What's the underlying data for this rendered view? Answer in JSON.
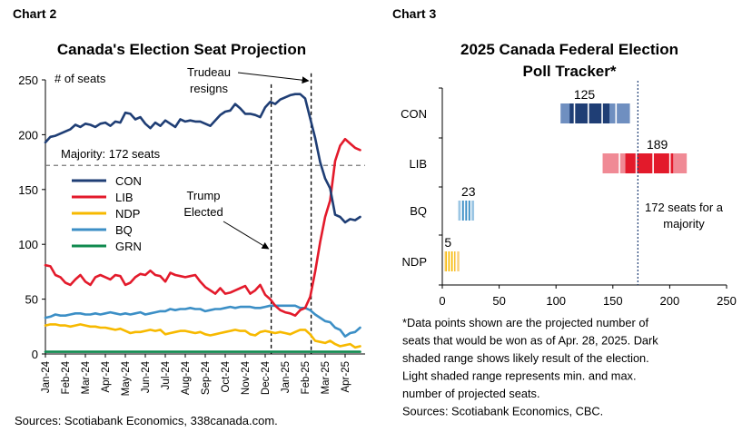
{
  "colors": {
    "con": "#1f3e75",
    "lib": "#e31a2b",
    "ndp": "#f7b900",
    "bq": "#3c8fc6",
    "grn": "#0f8a4f",
    "con_light": "#6f8fc0",
    "lib_light": "#f08a95",
    "bq_light": "#9cc6e4",
    "ndp_light": "#f8cf7a"
  },
  "chart_data": [
    {
      "id": "chart2",
      "type": "line",
      "label": "Chart 2",
      "title": "Canada's Election Seat Projection",
      "ylabel": "# of seats",
      "ylim": [
        0,
        250
      ],
      "yticks": [
        0,
        50,
        100,
        150,
        200,
        250
      ],
      "xlim": [
        0,
        16
      ],
      "x_tick_labels": [
        "Jan-24",
        "Feb-24",
        "Mar-24",
        "Apr-24",
        "May-24",
        "Jun-24",
        "Jul-24",
        "Aug-24",
        "Sep-24",
        "Oct-24",
        "Nov-24",
        "Dec-24",
        "Jan-25",
        "Feb-25",
        "Mar-25",
        "Apr-25"
      ],
      "majority": {
        "value": 172,
        "label": "Majority: 172 seats"
      },
      "events": [
        {
          "x": 11.3,
          "label_lines": [
            "Trump",
            "Elected"
          ]
        },
        {
          "x": 13.3,
          "label_lines": [
            "Trudeau",
            "resigns"
          ]
        }
      ],
      "series": [
        {
          "name": "CON",
          "color_key": "con",
          "x": [
            0,
            0.25,
            0.5,
            0.75,
            1,
            1.25,
            1.5,
            1.75,
            2,
            2.25,
            2.5,
            2.75,
            3,
            3.25,
            3.5,
            3.75,
            4,
            4.25,
            4.5,
            4.75,
            5,
            5.25,
            5.5,
            5.75,
            6,
            6.25,
            6.5,
            6.75,
            7,
            7.25,
            7.5,
            7.75,
            8,
            8.25,
            8.5,
            8.75,
            9,
            9.25,
            9.5,
            9.75,
            10,
            10.25,
            10.5,
            10.75,
            11,
            11.25,
            11.5,
            11.75,
            12,
            12.25,
            12.5,
            12.75,
            13,
            13.25,
            13.5,
            13.75,
            14,
            14.25,
            14.5,
            14.75,
            15,
            15.25,
            15.5,
            15.75
          ],
          "y": [
            193,
            198,
            199,
            201,
            203,
            205,
            209,
            207,
            210,
            209,
            207,
            210,
            211,
            208,
            212,
            211,
            220,
            219,
            214,
            216,
            210,
            206,
            211,
            208,
            213,
            210,
            207,
            214,
            212,
            213,
            212,
            212,
            210,
            208,
            213,
            218,
            221,
            222,
            228,
            224,
            219,
            219,
            218,
            216,
            225,
            230,
            228,
            232,
            234,
            236,
            237,
            237,
            233,
            215,
            197,
            175,
            160,
            151,
            127,
            125,
            120,
            123,
            122,
            125
          ]
        },
        {
          "name": "LIB",
          "color_key": "lib",
          "x": [
            0,
            0.25,
            0.5,
            0.75,
            1,
            1.25,
            1.5,
            1.75,
            2,
            2.25,
            2.5,
            2.75,
            3,
            3.25,
            3.5,
            3.75,
            4,
            4.25,
            4.5,
            4.75,
            5,
            5.25,
            5.5,
            5.75,
            6,
            6.25,
            6.5,
            6.75,
            7,
            7.25,
            7.5,
            7.75,
            8,
            8.25,
            8.5,
            8.75,
            9,
            9.25,
            9.5,
            9.75,
            10,
            10.25,
            10.5,
            10.75,
            11,
            11.25,
            11.5,
            11.75,
            12,
            12.25,
            12.5,
            12.75,
            13,
            13.25,
            13.5,
            13.75,
            14,
            14.25,
            14.5,
            14.75,
            15,
            15.25,
            15.5,
            15.75
          ],
          "y": [
            81,
            80,
            72,
            70,
            65,
            63,
            68,
            72,
            66,
            63,
            70,
            72,
            70,
            68,
            72,
            71,
            63,
            65,
            70,
            73,
            72,
            76,
            72,
            71,
            66,
            74,
            72,
            71,
            70,
            71,
            72,
            66,
            61,
            58,
            55,
            60,
            55,
            56,
            58,
            60,
            62,
            55,
            58,
            63,
            54,
            50,
            44,
            40,
            38,
            37,
            35,
            40,
            42,
            52,
            75,
            102,
            125,
            140,
            176,
            190,
            196,
            192,
            188,
            186
          ]
        },
        {
          "name": "NDP",
          "color_key": "ndp",
          "x": [
            0,
            0.25,
            0.5,
            0.75,
            1,
            1.25,
            1.5,
            1.75,
            2,
            2.25,
            2.5,
            2.75,
            3,
            3.25,
            3.5,
            3.75,
            4,
            4.25,
            4.5,
            4.75,
            5,
            5.25,
            5.5,
            5.75,
            6,
            6.25,
            6.5,
            6.75,
            7,
            7.25,
            7.5,
            7.75,
            8,
            8.25,
            8.5,
            8.75,
            9,
            9.25,
            9.5,
            9.75,
            10,
            10.25,
            10.5,
            10.75,
            11,
            11.25,
            11.5,
            11.75,
            12,
            12.25,
            12.5,
            12.75,
            13,
            13.25,
            13.5,
            13.75,
            14,
            14.25,
            14.5,
            14.75,
            15,
            15.25,
            15.5,
            15.75
          ],
          "y": [
            26,
            27,
            27,
            26,
            26,
            25,
            26,
            27,
            26,
            25,
            25,
            24,
            24,
            23,
            22,
            23,
            21,
            19,
            20,
            20,
            21,
            22,
            21,
            22,
            18,
            19,
            20,
            21,
            21,
            20,
            19,
            20,
            18,
            17,
            18,
            19,
            20,
            21,
            22,
            21,
            21,
            18,
            17,
            20,
            21,
            20,
            19,
            20,
            19,
            18,
            20,
            22,
            22,
            18,
            12,
            11,
            10,
            12,
            9,
            7,
            8,
            9,
            6,
            7
          ]
        },
        {
          "name": "BQ",
          "color_key": "bq",
          "x": [
            0,
            0.25,
            0.5,
            0.75,
            1,
            1.25,
            1.5,
            1.75,
            2,
            2.25,
            2.5,
            2.75,
            3,
            3.25,
            3.5,
            3.75,
            4,
            4.25,
            4.5,
            4.75,
            5,
            5.25,
            5.5,
            5.75,
            6,
            6.25,
            6.5,
            6.75,
            7,
            7.25,
            7.5,
            7.75,
            8,
            8.25,
            8.5,
            8.75,
            9,
            9.25,
            9.5,
            9.75,
            10,
            10.25,
            10.5,
            10.75,
            11,
            11.25,
            11.5,
            11.75,
            12,
            12.25,
            12.5,
            12.75,
            13,
            13.25,
            13.5,
            13.75,
            14,
            14.25,
            14.5,
            14.75,
            15,
            15.25,
            15.5,
            15.75
          ],
          "y": [
            33,
            34,
            36,
            35,
            35,
            36,
            37,
            37,
            36,
            36,
            37,
            36,
            37,
            38,
            37,
            36,
            37,
            36,
            37,
            38,
            36,
            37,
            38,
            39,
            39,
            41,
            40,
            41,
            41,
            42,
            41,
            41,
            39,
            40,
            41,
            41,
            42,
            43,
            42,
            43,
            43,
            43,
            42,
            42,
            43,
            44,
            44,
            44,
            44,
            44,
            44,
            42,
            42,
            40,
            36,
            33,
            30,
            29,
            24,
            22,
            16,
            19,
            20,
            24
          ]
        },
        {
          "name": "GRN",
          "color_key": "grn",
          "x": [
            0,
            2,
            4,
            6,
            8,
            10,
            12,
            14,
            15.75
          ],
          "y": [
            2,
            2,
            2,
            2,
            2,
            2,
            2,
            2,
            2
          ]
        }
      ],
      "source": "Sources: Scotiabank Economics, 338canada.com."
    },
    {
      "id": "chart3",
      "type": "bar",
      "label": "Chart 3",
      "title_lines": [
        "2025 Canada Federal Election",
        "Poll Tracker*"
      ],
      "xlim": [
        0,
        250
      ],
      "xticks": [
        0,
        50,
        100,
        150,
        200,
        250
      ],
      "majority": {
        "value": 172,
        "label_lines": [
          "172 seats for a",
          "majority"
        ]
      },
      "parties": [
        {
          "name": "CON",
          "projected": 125,
          "min": 104,
          "max": 165,
          "likely_low": 112,
          "likely_high": 147,
          "color_key": "con",
          "light_key": "con_light"
        },
        {
          "name": "LIB",
          "projected": 189,
          "min": 141,
          "max": 215,
          "likely_low": 161,
          "likely_high": 203,
          "color_key": "lib",
          "light_key": "lib_light"
        },
        {
          "name": "BQ",
          "projected": 23,
          "min": 14,
          "max": 28,
          "likely_low": 17,
          "likely_high": 26,
          "color_key": "bq",
          "light_key": "bq_light"
        },
        {
          "name": "NDP",
          "projected": 5,
          "min": 2,
          "max": 15,
          "likely_low": 3,
          "likely_high": 11,
          "color_key": "ndp",
          "light_key": "ndp_light"
        }
      ],
      "footnote_lines": [
        "*Data points shown are the projected number of",
        "seats that would be won as of Apr. 28, 2025. Dark",
        "shaded range shows likely result of the election.",
        "Light shaded range represents min. and max.",
        "number of projected seats.",
        "Sources: Scotiabank Economics, CBC."
      ]
    }
  ]
}
